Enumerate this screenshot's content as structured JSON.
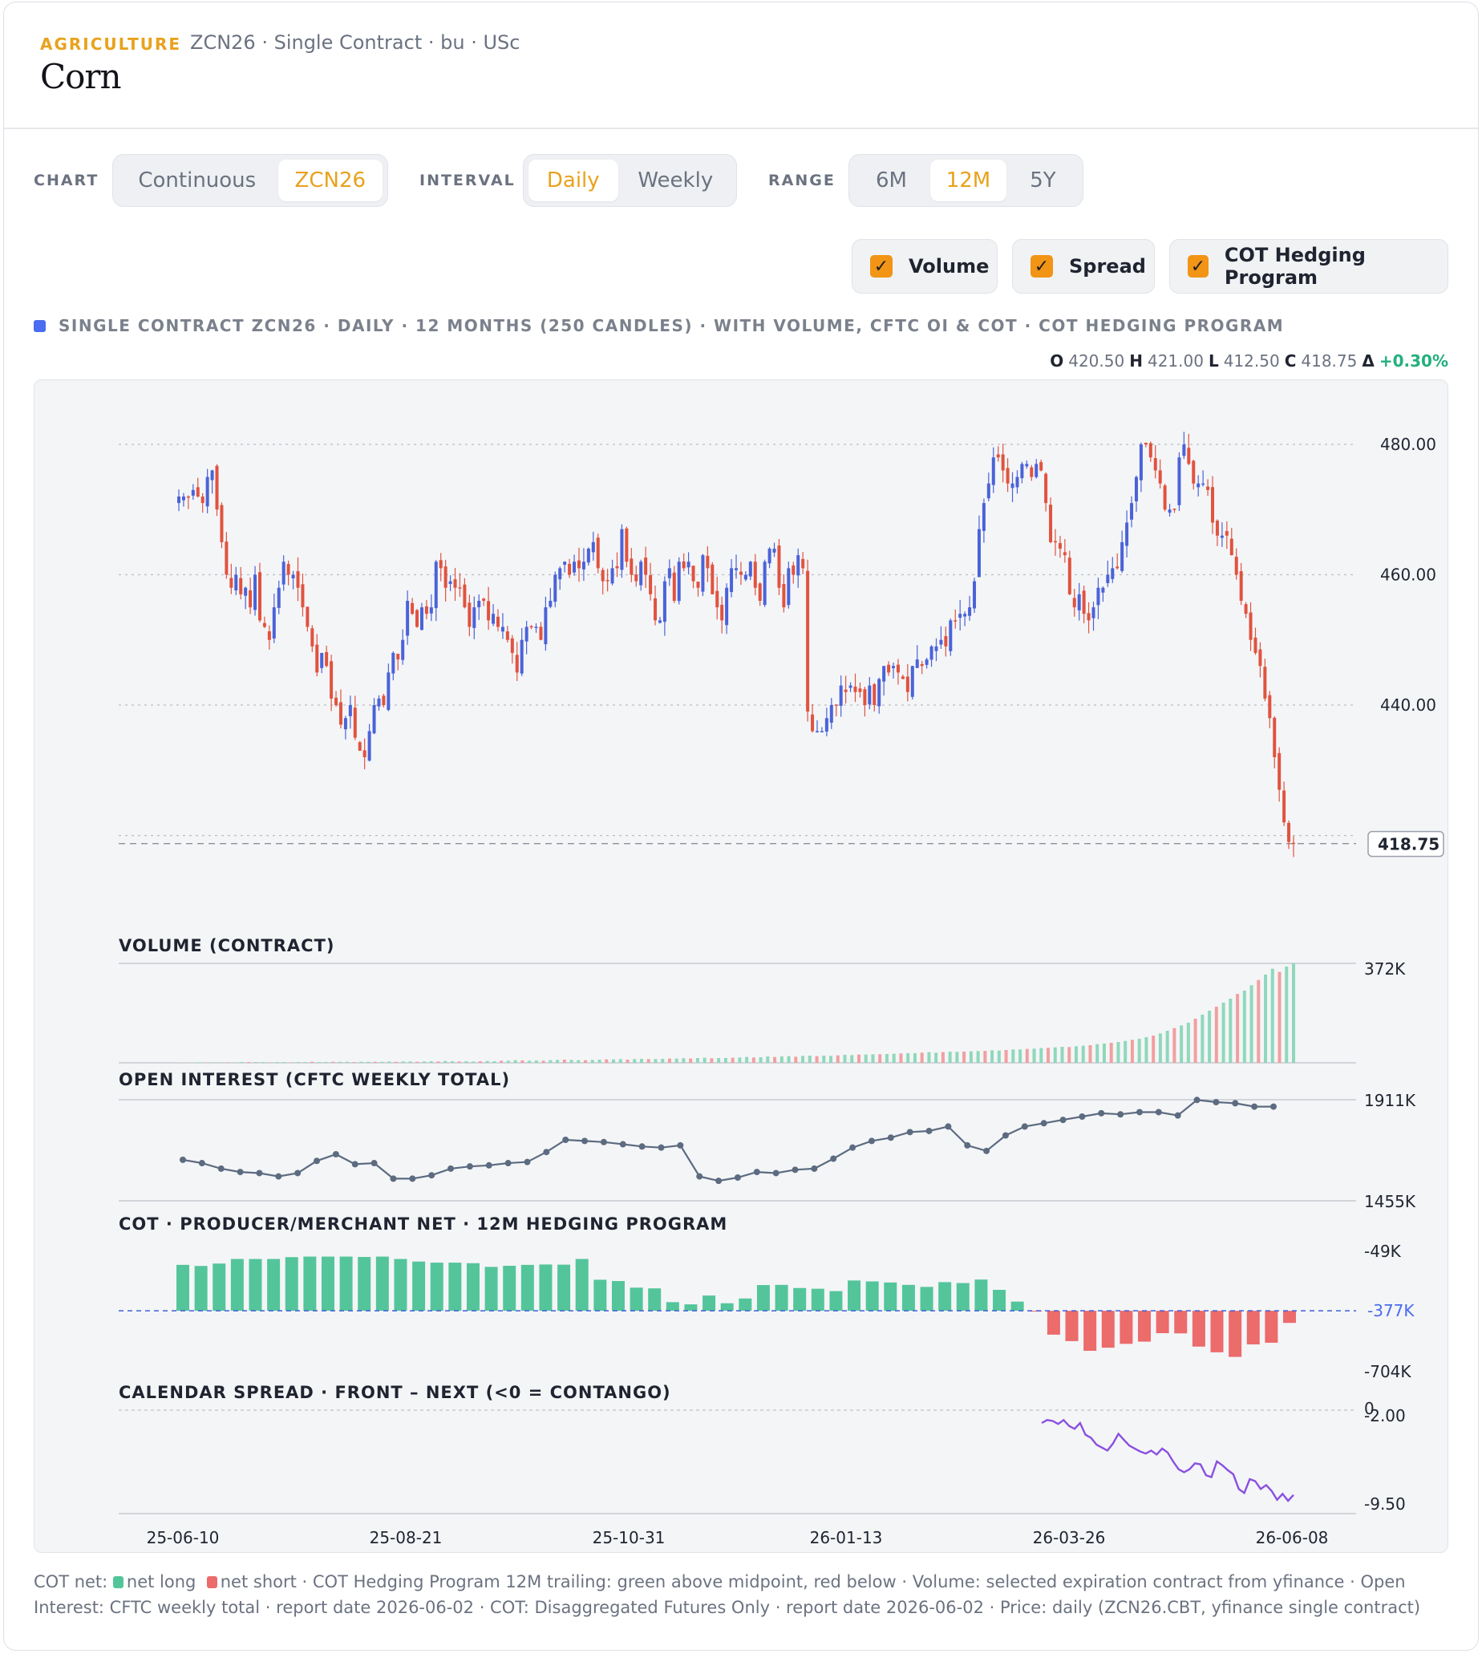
{
  "header": {
    "category": "AGRICULTURE",
    "subtitle": "ZCN26 · Single Contract · bu · USc",
    "title": "Corn"
  },
  "controls": {
    "chart_label": "CHART",
    "chart_options": [
      "Continuous",
      "ZCN26"
    ],
    "chart_selected": "ZCN26",
    "interval_label": "INTERVAL",
    "interval_options": [
      "Daily",
      "Weekly"
    ],
    "interval_selected": "Daily",
    "range_label": "RANGE",
    "range_options": [
      "6M",
      "12M",
      "5Y"
    ],
    "range_selected": "12M",
    "toggles": [
      {
        "label": "Volume",
        "checked": true
      },
      {
        "label": "Spread",
        "checked": true
      },
      {
        "label": "COT Hedging Program",
        "checked": true
      }
    ]
  },
  "description": "SINGLE CONTRACT ZCN26 · DAILY · 12 MONTHS (250 CANDLES) · WITH VOLUME, CFTC OI & COT · COT HEDGING PROGRAM",
  "ohlc": {
    "o_label": "O",
    "o": "420.50",
    "h_label": "H",
    "h": "421.00",
    "l_label": "L",
    "l": "412.50",
    "c_label": "C",
    "c": "418.75",
    "chg_label": "Δ",
    "chg": "+0.30%"
  },
  "colors": {
    "accent": "#e8a21d",
    "up_candle": "#4a63d8",
    "down_candle": "#e0533f",
    "net_long": "#54c59b",
    "net_short": "#ec6b6b",
    "volume_up": "#8fd8bb",
    "volume_down": "#f0a0a0",
    "open_interest": "#5c6b80",
    "spread": "#8a4fe0"
  },
  "chart_data": [
    {
      "type": "candlestick",
      "panel": "price",
      "y_ticks": [
        "480.00",
        "460.00",
        "440.00"
      ],
      "ylim": [
        410,
        487
      ],
      "last_price_label": "418.75",
      "last_price": 418.75,
      "grid": true,
      "approximate_closes": [
        472,
        472,
        472,
        473,
        472,
        471,
        475,
        476,
        470,
        465,
        460,
        458,
        460,
        457,
        458,
        455,
        460,
        453,
        452,
        450,
        455,
        458,
        462,
        460,
        460,
        458,
        455,
        452,
        449,
        445,
        448,
        446,
        441,
        440,
        437,
        438,
        440,
        435,
        433,
        432,
        436,
        440,
        441,
        440,
        445,
        448,
        447,
        450,
        456,
        454,
        452,
        455,
        454,
        455,
        462,
        461,
        458,
        459,
        458,
        458,
        455,
        452,
        455,
        456,
        456,
        453,
        454,
        452,
        452,
        450,
        448,
        445,
        450,
        452,
        452,
        452,
        450,
        455,
        456,
        460,
        461,
        462,
        460,
        462,
        461,
        462,
        464,
        465,
        461,
        459,
        459,
        461,
        461,
        467,
        462,
        460,
        459,
        462,
        460,
        457,
        453,
        453,
        459,
        461,
        456,
        462,
        461,
        462,
        459,
        458,
        463,
        461,
        457,
        455,
        453,
        458,
        461,
        461,
        460,
        460,
        462,
        458,
        456,
        462,
        464,
        464,
        458,
        455,
        461,
        460,
        463,
        461,
        439,
        436,
        436,
        436,
        438,
        440,
        440,
        443,
        442,
        443,
        442,
        442,
        440,
        443,
        440,
        444,
        446,
        445,
        446,
        445,
        444,
        442,
        446,
        447,
        446,
        447,
        449,
        449,
        450,
        449,
        453,
        453,
        454,
        454,
        455,
        459,
        467,
        471,
        474,
        478,
        478,
        476,
        474,
        474,
        475,
        477,
        477,
        475,
        477,
        476,
        471,
        465,
        465,
        464,
        463,
        457,
        455,
        457,
        454,
        453,
        455,
        458,
        458,
        460,
        461,
        461,
        465,
        468,
        471,
        475,
        480,
        480,
        478,
        476,
        474,
        470,
        470,
        470,
        478,
        480,
        477,
        474,
        474,
        474,
        473,
        468,
        466,
        466,
        466,
        463,
        460,
        456,
        454,
        450,
        448,
        446,
        441,
        438,
        432,
        427,
        422,
        419,
        418.75
      ],
      "note": "Daily closes approximated from the candlestick chart."
    },
    {
      "type": "bar",
      "panel": "volume",
      "title": "VOLUME (CONTRACT)",
      "y_top_label": "372K",
      "ylim": [
        0,
        372
      ],
      "values": [
        1,
        1,
        1,
        2,
        1,
        2,
        2,
        2,
        2,
        3,
        3,
        3,
        3,
        2,
        3,
        3,
        2,
        3,
        3,
        4,
        3,
        3,
        4,
        4,
        4,
        3,
        4,
        4,
        4,
        4,
        5,
        4,
        5,
        5,
        4,
        5,
        6,
        5,
        7,
        6,
        5,
        6,
        5,
        6,
        7,
        6,
        8,
        8,
        10,
        9,
        8,
        9,
        8,
        10,
        11,
        12,
        11,
        10,
        10,
        11,
        12,
        13,
        13,
        14,
        12,
        14,
        15,
        14,
        14,
        15,
        16,
        16,
        17,
        16,
        18,
        19,
        17,
        18,
        18,
        19,
        20,
        22,
        20,
        21,
        24,
        22,
        24,
        25,
        23,
        26,
        27,
        25,
        27,
        26,
        28,
        30,
        29,
        31,
        31,
        32,
        32,
        33,
        34,
        35,
        36,
        36,
        38,
        40,
        38,
        40,
        42,
        41,
        42,
        43,
        44,
        45,
        47,
        46,
        48,
        50,
        50,
        52,
        53,
        55,
        56,
        58,
        60,
        59,
        62,
        64,
        66,
        70,
        72,
        75,
        78,
        82,
        86,
        90,
        96,
        102,
        110,
        120,
        130,
        140,
        150,
        165,
        180,
        195,
        210,
        225,
        240,
        258,
        270,
        290,
        310,
        330,
        352,
        340,
        360,
        372
      ],
      "note": "Values in thousands of contracts, approximated."
    },
    {
      "type": "line",
      "panel": "open_interest",
      "title": "OPEN INTEREST (CFTC WEEKLY TOTAL)",
      "y_ticks": [
        "1911K",
        "1455K"
      ],
      "ylim": [
        1455,
        1911
      ],
      "values": [
        1640,
        1625,
        1600,
        1585,
        1580,
        1565,
        1580,
        1635,
        1665,
        1620,
        1625,
        1555,
        1555,
        1570,
        1600,
        1610,
        1615,
        1625,
        1630,
        1675,
        1730,
        1725,
        1720,
        1710,
        1700,
        1695,
        1705,
        1565,
        1545,
        1560,
        1585,
        1580,
        1595,
        1600,
        1645,
        1695,
        1725,
        1740,
        1765,
        1770,
        1790,
        1705,
        1680,
        1750,
        1790,
        1805,
        1820,
        1835,
        1850,
        1845,
        1855,
        1855,
        1840,
        1910,
        1900,
        1895,
        1880,
        1880
      ],
      "note": "Weekly open interest (thousands), approximated from the line."
    },
    {
      "type": "bar",
      "panel": "cot",
      "title": "COT · PRODUCER/MERCHANT NET · 12M HEDGING PROGRAM",
      "y_ticks": [
        "-49K",
        "-377K",
        "-704K"
      ],
      "ylim": [
        -704,
        -49
      ],
      "midpoint": -377,
      "values": [
        -127,
        -133,
        -120,
        -95,
        -95,
        -95,
        -85,
        -82,
        -82,
        -82,
        -84,
        -82,
        -95,
        -109,
        -115,
        -115,
        -118,
        -138,
        -132,
        -127,
        -125,
        -126,
        -95,
        -208,
        -215,
        -251,
        -255,
        -330,
        -342,
        -294,
        -336,
        -310,
        -237,
        -236,
        -253,
        -257,
        -270,
        -212,
        -217,
        -223,
        -236,
        -247,
        -221,
        -226,
        -207,
        -263,
        -327,
        -377,
        -507,
        -542,
        -595,
        -578,
        -557,
        -545,
        -499,
        -500,
        -572,
        -603,
        -628,
        -560,
        -551,
        -443
      ],
      "note": "Producer/merchant net positions (thousands), approximated."
    },
    {
      "type": "line",
      "panel": "spread",
      "title": "CALENDAR SPREAD · FRONT – NEXT (<0 = CONTANGO)",
      "y_ticks": [
        "-2.00",
        "-9.50"
      ],
      "zero_label": "0",
      "ylim": [
        -10.5,
        0
      ],
      "values": [
        -1.3,
        -1.0,
        -1.1,
        -1.4,
        -1.0,
        -1.6,
        -1.9,
        -1.3,
        -2.5,
        -2.8,
        -3.5,
        -3.8,
        -4.1,
        -3.4,
        -2.4,
        -3.0,
        -3.6,
        -3.9,
        -4.2,
        -4.4,
        -4.1,
        -4.5,
        -3.9,
        -4.3,
        -5.2,
        -6.0,
        -6.3,
        -6.0,
        -5.4,
        -5.5,
        -6.6,
        -6.8,
        -5.2,
        -5.6,
        -6.1,
        -6.5,
        -8.0,
        -8.4,
        -7.0,
        -7.2,
        -8.0,
        -7.6,
        -8.2,
        -9.1,
        -8.5,
        -9.2,
        -8.6
      ],
      "note": "Spread values approximated from the plotted line; shown for the recent window only."
    },
    {
      "type": "axis",
      "panel": "x_axis",
      "x_ticks": [
        "25-06-10",
        "25-08-21",
        "25-10-31",
        "26-01-13",
        "26-03-26",
        "26-06-08"
      ]
    }
  ],
  "footer": {
    "cot_net_label": "COT net:",
    "net_long_label": "net long",
    "net_short_label": "net short",
    "text": "·  COT Hedging Program 12M trailing: green above midpoint, red below  · Volume: selected expiration contract from yfinance · Open Interest: CFTC weekly total · report date 2026-06-02 · COT: Disaggregated Futures Only · report date 2026-06-02 · Price: daily (ZCN26.CBT, yfinance single contract)"
  }
}
